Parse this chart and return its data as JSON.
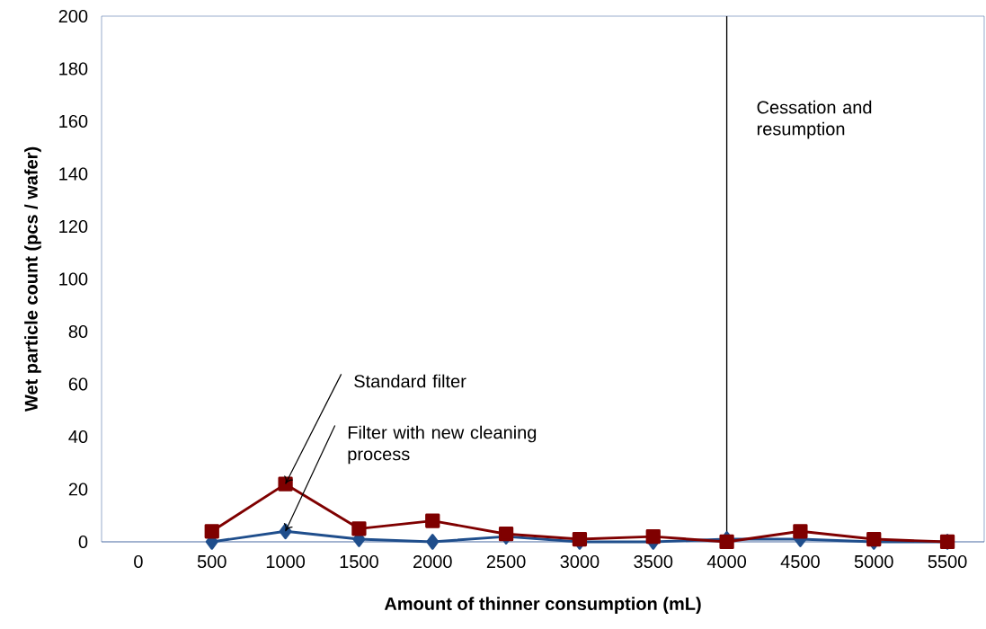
{
  "chart_data": {
    "type": "line",
    "xlabel": "Amount of thinner consumption (mL)",
    "ylabel": "Wet particle count (pcs / wafer)",
    "categories": [
      "0",
      "500",
      "1000",
      "1500",
      "2000",
      "2500",
      "3000",
      "3500",
      "4000",
      "4500",
      "5000",
      "5500"
    ],
    "series": [
      {
        "color": "#1f4e8c",
        "marker": "diamond",
        "values": [
          null,
          0,
          4,
          1,
          0,
          2,
          0,
          0,
          1,
          1,
          0,
          0
        ]
      },
      {
        "color": "#7f0000",
        "marker": "square",
        "values": [
          null,
          4,
          22,
          5,
          8,
          3,
          1,
          2,
          0,
          4,
          1,
          0
        ]
      }
    ],
    "ylim": [
      0,
      200
    ],
    "yticks": [
      0,
      20,
      40,
      60,
      80,
      100,
      120,
      140,
      160,
      180,
      200
    ],
    "ref_lines": [
      {
        "axis": "x",
        "value": "4000",
        "label": "Cessation  and resumption",
        "color": "#000000"
      }
    ],
    "annotations": [
      {
        "text": "Standard filter",
        "x": "1000",
        "y": 22
      },
      {
        "text": "Filter with new cleaning process",
        "x": "1000",
        "y": 4
      }
    ],
    "grid": false
  }
}
